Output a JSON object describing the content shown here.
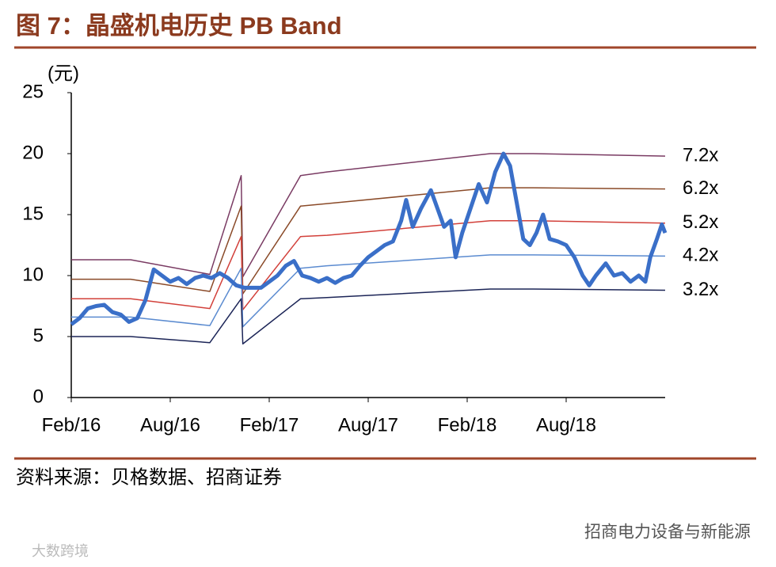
{
  "chart_data": {
    "type": "line",
    "title": "图 7：晶盛机电历史 PB Band",
    "y_unit": "(元)",
    "source": "资料来源：贝格数据、招商证券",
    "watermarks": [
      "招商电力设备与新能源",
      "大数跨境"
    ],
    "xlim": [
      0,
      36
    ],
    "xticks": [
      {
        "value": 0,
        "label": "Feb/16"
      },
      {
        "value": 6,
        "label": "Aug/16"
      },
      {
        "value": 12,
        "label": "Feb/17"
      },
      {
        "value": 18,
        "label": "Aug/17"
      },
      {
        "value": 24,
        "label": "Feb/18"
      },
      {
        "value": 30,
        "label": "Aug/18"
      }
    ],
    "ylim": [
      0,
      25
    ],
    "yticks": [
      0,
      5,
      10,
      15,
      20,
      25
    ],
    "grid": false,
    "series": [
      {
        "name": "7.2x",
        "color": "#7a3b63",
        "width": 1.5,
        "x": [
          0,
          3.6,
          8.4,
          10.3,
          10.4,
          13.9,
          15.5,
          25.4,
          28,
          36
        ],
        "values": [
          11.3,
          11.3,
          10.1,
          18.2,
          9.9,
          18.2,
          18.5,
          20.0,
          20.0,
          19.8
        ]
      },
      {
        "name": "6.2x",
        "color": "#8a4a28",
        "width": 1.5,
        "x": [
          0,
          3.6,
          8.4,
          10.3,
          10.4,
          13.9,
          15.5,
          25.4,
          28,
          36
        ],
        "values": [
          9.7,
          9.7,
          8.7,
          15.7,
          8.5,
          15.7,
          15.9,
          17.2,
          17.2,
          17.1
        ]
      },
      {
        "name": "5.2x",
        "color": "#d2403a",
        "width": 1.5,
        "x": [
          0,
          3.6,
          8.4,
          10.3,
          10.4,
          13.9,
          15.5,
          25.4,
          28,
          36
        ],
        "values": [
          8.1,
          8.1,
          7.3,
          13.2,
          7.2,
          13.2,
          13.3,
          14.5,
          14.5,
          14.3
        ]
      },
      {
        "name": "4.2x",
        "color": "#5b8bd0",
        "width": 1.5,
        "x": [
          0,
          3.6,
          8.4,
          10.3,
          10.4,
          13.9,
          15.5,
          25.4,
          28,
          36
        ],
        "values": [
          6.6,
          6.6,
          5.9,
          10.6,
          5.8,
          10.6,
          10.8,
          11.7,
          11.7,
          11.6
        ]
      },
      {
        "name": "3.2x",
        "color": "#1c2557",
        "width": 1.5,
        "x": [
          0,
          3.6,
          8.4,
          10.3,
          10.4,
          13.9,
          15.5,
          25.4,
          28,
          36
        ],
        "values": [
          5.0,
          5.0,
          4.5,
          8.1,
          4.4,
          8.1,
          8.2,
          8.9,
          8.9,
          8.8
        ]
      },
      {
        "name": null,
        "color": "#3a6fc8",
        "width": 5,
        "x": [
          0,
          0.5,
          1,
          1.5,
          2,
          2.5,
          3,
          3.5,
          4,
          4.5,
          5,
          5.5,
          6,
          6.5,
          7,
          7.5,
          8,
          8.5,
          9,
          9.5,
          10,
          10.5,
          11,
          11.5,
          12,
          12.5,
          13,
          13.5,
          14,
          14.5,
          15,
          15.5,
          16,
          16.5,
          17,
          17.5,
          18,
          18.5,
          19,
          19.5,
          20,
          20.3,
          20.7,
          21.2,
          21.8,
          22.2,
          22.6,
          23,
          23.3,
          23.7,
          24.2,
          24.7,
          25.2,
          25.7,
          26.2,
          26.6,
          27,
          27.4,
          27.8,
          28.2,
          28.6,
          29,
          29.5,
          30,
          30.5,
          31,
          31.4,
          31.8,
          32.4,
          32.9,
          33.4,
          33.9,
          34.4,
          34.8,
          35.1,
          35.5,
          35.8,
          36
        ],
        "values": [
          6.0,
          6.5,
          7.3,
          7.5,
          7.6,
          7.0,
          6.8,
          6.2,
          6.5,
          8.0,
          10.5,
          10.0,
          9.5,
          9.8,
          9.3,
          9.8,
          10.0,
          9.8,
          10.2,
          9.8,
          9.2,
          9.0,
          9.0,
          9.0,
          9.5,
          10.0,
          10.8,
          11.2,
          10.0,
          9.8,
          9.5,
          9.8,
          9.4,
          9.8,
          10.0,
          10.8,
          11.5,
          12.0,
          12.5,
          12.8,
          14.5,
          16.2,
          14.0,
          15.5,
          17.0,
          15.5,
          14.0,
          14.5,
          11.5,
          13.5,
          15.5,
          17.5,
          16.0,
          18.5,
          20.0,
          19.0,
          16.0,
          13.0,
          12.5,
          13.5,
          15.0,
          13.0,
          12.8,
          12.5,
          11.5,
          10.0,
          9.2,
          10.0,
          11.0,
          10.0,
          10.2,
          9.5,
          10.0,
          9.5,
          11.5,
          13.0,
          14.2,
          13.5
        ]
      }
    ]
  }
}
